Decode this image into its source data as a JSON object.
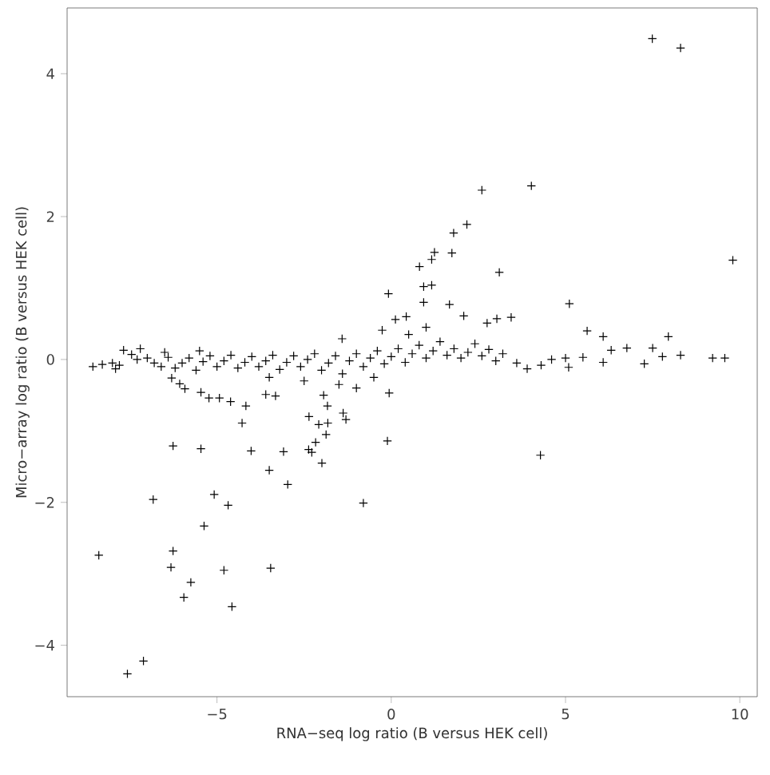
{
  "chart_data": {
    "type": "scatter",
    "xlabel": "RNA−seq log ratio (B versus HEK cell)",
    "ylabel": "Micro−array log ratio (B versus HEK cell)",
    "xlim": [
      -9.3,
      10.5
    ],
    "ylim": [
      -4.72,
      4.92
    ],
    "xticks": [
      {
        "value": -5,
        "label": "−5"
      },
      0,
      5,
      10
    ],
    "yticks": [
      {
        "value": -4,
        "label": "−4"
      },
      {
        "value": -2,
        "label": "−2"
      },
      0,
      2,
      4
    ],
    "grid": false,
    "marker": "cross",
    "series": [
      {
        "color": "#000000",
        "x": [
          7.49,
          8.3,
          2.6,
          4.02,
          2.17,
          1.79,
          1.74,
          1.24,
          1.16,
          0.81,
          3.1,
          0.93,
          1.16,
          -0.08,
          9.8,
          0.93,
          1.67,
          5.11,
          2.08,
          3.44,
          3.03,
          2.75,
          5.62,
          6.08,
          7.95,
          6.76,
          7.5,
          8.3,
          9.22,
          9.57,
          7.78,
          7.26,
          6.31,
          6.08,
          5.09,
          3.9,
          4.28,
          -0.11,
          -0.06,
          3.6,
          4.3,
          4.6,
          5.0,
          5.5,
          -6.26,
          -5.46,
          -6.83,
          -5.08,
          -4.68,
          -5.37,
          -8.39,
          -6.26,
          -6.32,
          -4.8,
          -3.46,
          -5.75,
          -5.95,
          -4.57,
          -7.11,
          -7.57,
          -0.8,
          -4.02,
          -3.09,
          -2.37,
          -2.28,
          -2.17,
          -1.99,
          -3.5,
          -2.97,
          -4.28,
          -2.36,
          -2.08,
          -1.82,
          -1.87,
          -4.17,
          -1.3,
          -1.38,
          -5.46,
          -5.23,
          -4.93,
          -4.61,
          -3.6,
          -3.32,
          -1.94,
          -1.83,
          -8.56,
          -8.29,
          -7.91,
          -7.68,
          -7.45,
          -7.29,
          -1.41,
          -0.26,
          0.12,
          0.43,
          -6.07,
          -5.92,
          -6.3,
          -8.0,
          -7.8,
          -7.0,
          -6.8,
          -6.6,
          -6.4,
          -6.2,
          -6.0,
          -5.8,
          -5.6,
          -5.4,
          -5.2,
          -5.0,
          -4.8,
          -4.6,
          -4.4,
          -4.2,
          -4.0,
          -3.8,
          -3.6,
          -3.4,
          -3.2,
          -3.0,
          -2.8,
          -2.6,
          -2.4,
          -2.2,
          -2.0,
          -1.8,
          -1.6,
          -1.4,
          -1.2,
          -1.0,
          -0.8,
          -0.6,
          -0.4,
          -0.2,
          0.0,
          0.2,
          0.4,
          0.6,
          0.8,
          1.0,
          1.2,
          1.4,
          1.6,
          1.8,
          2.0,
          2.2,
          2.4,
          2.6,
          2.8,
          3.0,
          3.2,
          -2.5,
          -1.5,
          -0.5,
          -3.5,
          -1.0,
          0.5,
          1.0,
          -7.2,
          -5.5,
          -6.5
        ],
        "values": [
          4.49,
          4.36,
          2.37,
          2.43,
          1.89,
          1.77,
          1.49,
          1.5,
          1.4,
          1.3,
          1.22,
          1.02,
          1.04,
          0.92,
          1.39,
          0.8,
          0.77,
          0.78,
          0.61,
          0.59,
          0.57,
          0.51,
          0.4,
          0.32,
          0.32,
          0.16,
          0.16,
          0.06,
          0.02,
          0.02,
          0.04,
          -0.06,
          0.13,
          -0.04,
          -0.11,
          -0.13,
          -1.34,
          -1.14,
          -0.47,
          -0.05,
          -0.08,
          0.0,
          0.02,
          0.03,
          -1.21,
          -1.25,
          -1.96,
          -1.89,
          -2.04,
          -2.33,
          -2.74,
          -2.68,
          -2.91,
          -2.95,
          -2.92,
          -3.12,
          -3.33,
          -3.46,
          -4.22,
          -4.4,
          -2.01,
          -1.28,
          -1.29,
          -1.26,
          -1.3,
          -1.16,
          -1.45,
          -1.55,
          -1.75,
          -0.89,
          -0.8,
          -0.91,
          -0.89,
          -1.05,
          -0.65,
          -0.84,
          -0.75,
          -0.46,
          -0.54,
          -0.54,
          -0.59,
          -0.49,
          -0.51,
          -0.5,
          -0.65,
          -0.1,
          -0.07,
          -0.13,
          0.13,
          0.07,
          0.0,
          0.29,
          0.41,
          0.56,
          0.6,
          -0.34,
          -0.41,
          -0.26,
          -0.05,
          -0.08,
          0.02,
          -0.05,
          -0.1,
          0.03,
          -0.12,
          -0.05,
          0.02,
          -0.15,
          -0.03,
          0.05,
          -0.1,
          -0.02,
          0.06,
          -0.12,
          -0.04,
          0.04,
          -0.1,
          -0.02,
          0.06,
          -0.14,
          -0.04,
          0.05,
          -0.1,
          0.0,
          0.08,
          -0.15,
          -0.05,
          0.05,
          -0.2,
          -0.02,
          0.08,
          -0.1,
          0.02,
          0.12,
          -0.06,
          0.04,
          0.15,
          -0.04,
          0.08,
          0.2,
          0.02,
          0.12,
          0.25,
          0.06,
          0.15,
          0.02,
          0.1,
          0.22,
          0.05,
          0.14,
          -0.02,
          0.08,
          -0.3,
          -0.35,
          -0.25,
          -0.25,
          -0.4,
          0.35,
          0.45,
          0.15,
          0.12,
          0.1
        ]
      }
    ]
  }
}
